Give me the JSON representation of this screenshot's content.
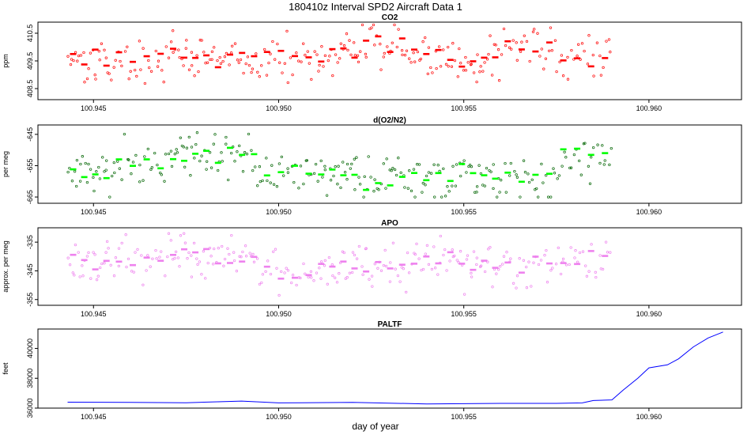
{
  "figure": {
    "title": "180410z   Interval SPD2 Aircraft Data 1",
    "xlabel": "day of year"
  },
  "chart_data": [
    {
      "type": "scatter",
      "title": "CO2",
      "ylabel": "ppm",
      "xlim": [
        100.9435,
        100.9625
      ],
      "ylim": [
        408.1,
        410.9
      ],
      "x_ticks": [
        100.945,
        100.95,
        100.955,
        100.96
      ],
      "x_tick_labels": [
        "100.945",
        "100.950",
        "100.955",
        "100.960"
      ],
      "y_ticks": [
        408.5,
        409.5,
        410.5
      ],
      "y_tick_labels": [
        "408.5",
        "409.5",
        "410.5"
      ],
      "color": "#ff0000",
      "series": [
        {
          "style": "points",
          "x_range": [
            100.9443,
            100.959
          ],
          "y_range": [
            408.3,
            410.8
          ],
          "mean_segments": [
            [
              100.9443,
              100.9455,
              409.6
            ],
            [
              100.9455,
              100.947,
              409.5
            ],
            [
              100.947,
              100.9482,
              409.7
            ],
            [
              100.9482,
              100.9495,
              409.5
            ],
            [
              100.9495,
              100.951,
              409.6
            ],
            [
              100.951,
              100.9522,
              409.7
            ],
            [
              100.9522,
              100.9535,
              410.1
            ],
            [
              100.9535,
              100.9548,
              409.6
            ],
            [
              100.9548,
              100.956,
              409.5
            ],
            [
              100.956,
              100.9575,
              409.9
            ],
            [
              100.9575,
              100.959,
              409.5
            ]
          ]
        }
      ]
    },
    {
      "type": "scatter",
      "title": "d(O2/N2)",
      "ylabel": "per meg",
      "xlim": [
        100.9435,
        100.9625
      ],
      "ylim": [
        -667,
        -642
      ],
      "x_ticks": [
        100.945,
        100.95,
        100.955,
        100.96
      ],
      "x_tick_labels": [
        "100.945",
        "100.950",
        "100.955",
        "100.960"
      ],
      "y_ticks": [
        -665,
        -655,
        -645
      ],
      "y_tick_labels": [
        "-665",
        "-655",
        "-645"
      ],
      "color": "#00ff00",
      "series": [
        {
          "style": "points",
          "x_range": [
            100.9443,
            100.959
          ],
          "y_range": [
            -665,
            -643
          ],
          "mean_segments": [
            [
              100.9443,
              100.9455,
              -658
            ],
            [
              100.9455,
              100.947,
              -654
            ],
            [
              100.947,
              100.9482,
              -651
            ],
            [
              100.9482,
              100.9495,
              -652
            ],
            [
              100.9495,
              100.951,
              -657
            ],
            [
              100.951,
              100.9522,
              -657
            ],
            [
              100.9522,
              100.9535,
              -660
            ],
            [
              100.9535,
              100.9548,
              -658
            ],
            [
              100.9548,
              100.956,
              -657
            ],
            [
              100.956,
              100.9575,
              -659
            ],
            [
              100.9575,
              100.959,
              -652
            ]
          ]
        }
      ]
    },
    {
      "type": "scatter",
      "title": "APO",
      "ylabel": "approx. per meg",
      "xlim": [
        100.9435,
        100.9625
      ],
      "ylim": [
        -357,
        -330
      ],
      "x_ticks": [
        100.945,
        100.95,
        100.955,
        100.96
      ],
      "x_tick_labels": [
        "100.945",
        "100.950",
        "100.955",
        "100.960"
      ],
      "y_ticks": [
        -355,
        -345,
        -335
      ],
      "y_tick_labels": [
        "-355",
        "-345",
        "-335"
      ],
      "color": "#ee82ee",
      "series": [
        {
          "style": "points",
          "x_range": [
            100.9443,
            100.959
          ],
          "y_range": [
            -356,
            -332
          ],
          "mean_segments": [
            [
              100.9443,
              100.9455,
              -342
            ],
            [
              100.9455,
              100.947,
              -341
            ],
            [
              100.947,
              100.9482,
              -339
            ],
            [
              100.9482,
              100.9495,
              -340
            ],
            [
              100.9495,
              100.951,
              -345
            ],
            [
              100.951,
              100.9522,
              -343
            ],
            [
              100.9522,
              100.9535,
              -344
            ],
            [
              100.9535,
              100.9548,
              -341
            ],
            [
              100.9548,
              100.956,
              -344
            ],
            [
              100.956,
              100.9575,
              -343
            ],
            [
              100.9575,
              100.959,
              -341
            ]
          ]
        }
      ]
    },
    {
      "type": "line",
      "title": "PALTF",
      "ylabel": "feet",
      "xlim": [
        100.9435,
        100.9625
      ],
      "ylim": [
        36000,
        41300
      ],
      "x_ticks": [
        100.945,
        100.95,
        100.955,
        100.96
      ],
      "x_tick_labels": [
        "100.945",
        "100.950",
        "100.955",
        "100.960"
      ],
      "y_ticks": [
        36000,
        38000,
        40000
      ],
      "y_tick_labels": [
        "36000",
        "38000",
        "40000"
      ],
      "color": "#0000ff",
      "series": [
        {
          "style": "line",
          "x": [
            100.9443,
            100.946,
            100.9475,
            100.949,
            100.95,
            100.952,
            100.954,
            100.956,
            100.9575,
            100.9582,
            100.9585,
            100.959,
            100.9593,
            100.9597,
            100.96,
            100.9605,
            100.9608,
            100.9612,
            100.9616,
            100.962
          ],
          "y": [
            36400,
            36380,
            36360,
            36470,
            36350,
            36380,
            36280,
            36320,
            36320,
            36350,
            36510,
            36550,
            37200,
            38000,
            38700,
            38900,
            39300,
            40100,
            40700,
            41100
          ]
        }
      ]
    }
  ]
}
